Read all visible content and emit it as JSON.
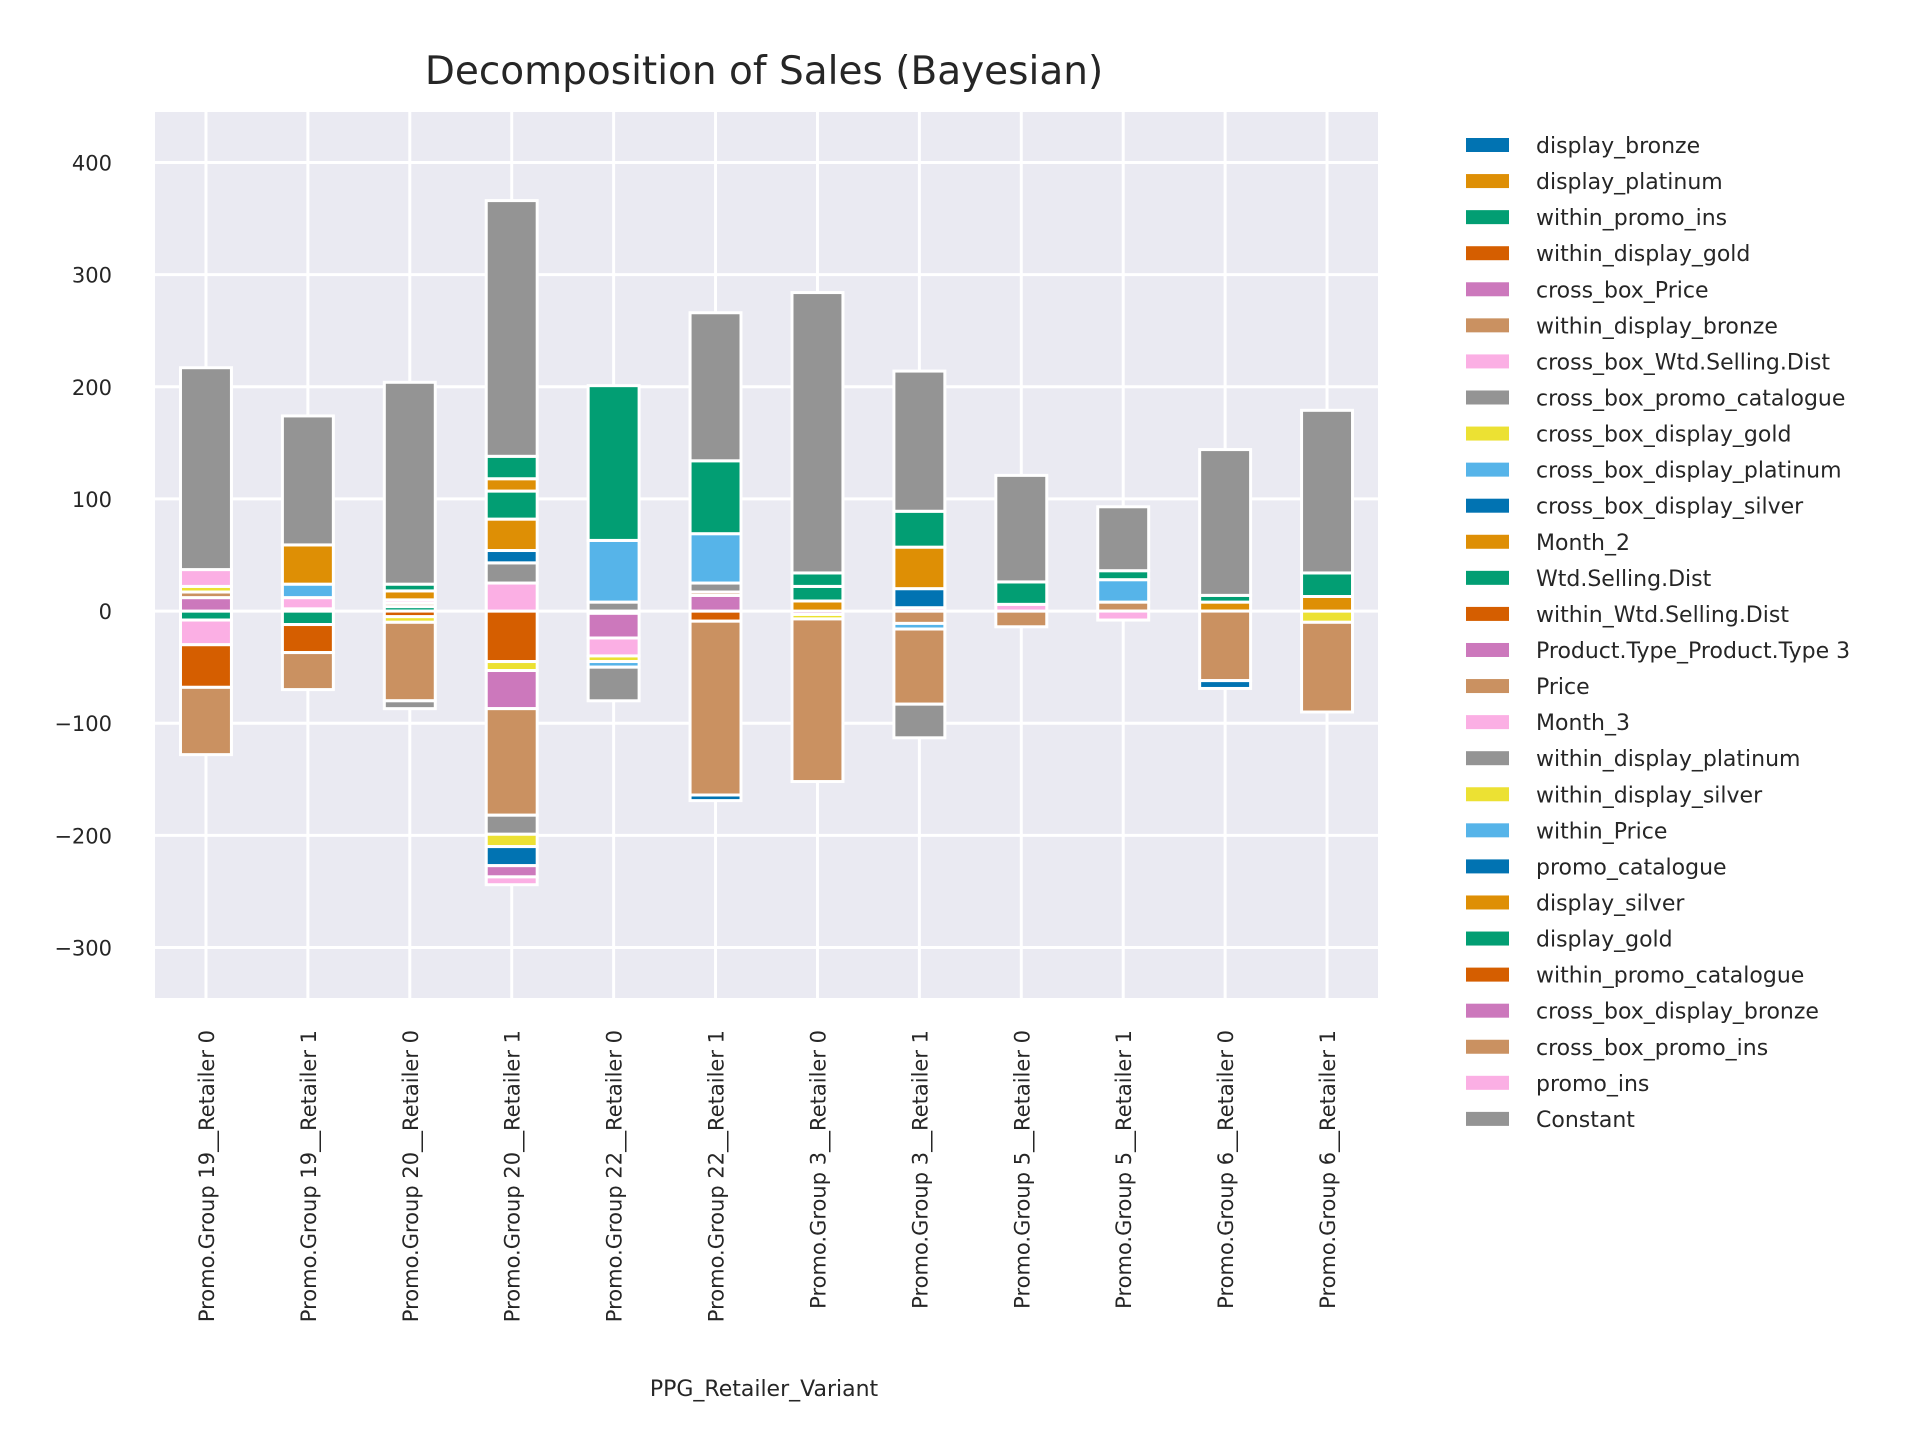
{
  "chart_data": {
    "type": "bar",
    "stacked": true,
    "title": "Decomposition of Sales (Bayesian)",
    "xlabel": "PPG_Retailer_Variant",
    "ylabel": "",
    "ylim": [
      -345,
      445
    ],
    "yticks": [
      -300,
      -200,
      -100,
      0,
      100,
      200,
      300,
      400
    ],
    "ytick_labels": [
      "−300",
      "−200",
      "−100",
      "0",
      "100",
      "200",
      "300",
      "400"
    ],
    "grid": true,
    "legend_position": "right",
    "categories": [
      "Promo.Group 19__Retailer 0",
      "Promo.Group 19__Retailer 1",
      "Promo.Group 20__Retailer 0",
      "Promo.Group 20__Retailer 1",
      "Promo.Group 22__Retailer 0",
      "Promo.Group 22__Retailer 1",
      "Promo.Group 3__Retailer 0",
      "Promo.Group 3__Retailer 1",
      "Promo.Group 5__Retailer 0",
      "Promo.Group 5__Retailer 1",
      "Promo.Group 6__Retailer 0",
      "Promo.Group 6__Retailer 1"
    ],
    "series": [
      {
        "name": "display_bronze",
        "color": "#0173b2",
        "values": [
          0,
          0,
          0,
          0,
          0,
          0,
          0,
          0,
          0,
          0,
          0,
          0
        ]
      },
      {
        "name": "display_platinum",
        "color": "#de8f05",
        "values": [
          0,
          0,
          0,
          0,
          0,
          0,
          0,
          0,
          0,
          0,
          0,
          0
        ]
      },
      {
        "name": "within_promo_ins",
        "color": "#029e73",
        "values": [
          -8,
          -12,
          4,
          0,
          0,
          0,
          0,
          0,
          0,
          0,
          0,
          0
        ]
      },
      {
        "name": "within_display_gold",
        "color": "#d55e00",
        "values": [
          0,
          -25,
          -5,
          -45,
          -2,
          -9,
          0,
          0,
          0,
          0,
          0,
          0
        ]
      },
      {
        "name": "cross_box_Price",
        "color": "#cc78bc",
        "values": [
          12,
          2,
          0,
          0,
          -22,
          14,
          -3,
          0,
          0,
          0,
          0,
          0
        ]
      },
      {
        "name": "within_display_bronze",
        "color": "#ca9161",
        "values": [
          5,
          0,
          3,
          0,
          0,
          3,
          0,
          -11,
          -14,
          8,
          0,
          0
        ]
      },
      {
        "name": "cross_box_Wtd.Selling.Dist",
        "color": "#fbafe4",
        "values": [
          -22,
          10,
          3,
          25,
          -16,
          0,
          0,
          3,
          6,
          -8,
          0,
          0
        ]
      },
      {
        "name": "cross_box_promo_catalogue",
        "color": "#949494",
        "values": [
          0,
          0,
          0,
          18,
          8,
          8,
          0,
          0,
          0,
          0,
          0,
          0
        ]
      },
      {
        "name": "cross_box_display_gold",
        "color": "#ece133",
        "values": [
          5,
          0,
          -5,
          -8,
          -5,
          0,
          -4,
          0,
          0,
          0,
          0,
          -10
        ]
      },
      {
        "name": "cross_box_display_platinum",
        "color": "#56b4e9",
        "values": [
          0,
          12,
          0,
          0,
          -5,
          44,
          0,
          -5,
          0,
          20,
          0,
          0
        ]
      },
      {
        "name": "cross_box_display_silver",
        "color": "#0173b2",
        "values": [
          0,
          0,
          0,
          11,
          0,
          0,
          0,
          17,
          0,
          0,
          0,
          0
        ]
      },
      {
        "name": "Month_2",
        "color": "#de8f05",
        "values": [
          0,
          35,
          8,
          28,
          0,
          0,
          9,
          37,
          0,
          0,
          8,
          13
        ]
      },
      {
        "name": "Wtd.Selling.Dist",
        "color": "#029e73",
        "values": [
          0,
          0,
          6,
          25,
          0,
          65,
          13,
          32,
          20,
          8,
          6,
          21
        ]
      },
      {
        "name": "within_Wtd.Selling.Dist",
        "color": "#d55e00",
        "values": [
          -38,
          0,
          0,
          0,
          0,
          0,
          0,
          0,
          0,
          0,
          0,
          0
        ]
      },
      {
        "name": "Product.Type_Product.Type 3",
        "color": "#cc78bc",
        "values": [
          0,
          0,
          0,
          -34,
          0,
          0,
          0,
          0,
          0,
          0,
          0,
          0
        ]
      },
      {
        "name": "Price",
        "color": "#ca9161",
        "values": [
          -60,
          -33,
          -70,
          -95,
          0,
          -155,
          -145,
          -67,
          0,
          0,
          -62,
          -80
        ]
      },
      {
        "name": "Month_3",
        "color": "#fbafe4",
        "values": [
          15,
          0,
          0,
          0,
          0,
          0,
          0,
          0,
          0,
          0,
          0,
          0
        ]
      },
      {
        "name": "within_display_platinum",
        "color": "#949494",
        "values": [
          0,
          0,
          -7,
          -17,
          0,
          0,
          0,
          -30,
          0,
          0,
          0,
          0
        ]
      },
      {
        "name": "within_display_silver",
        "color": "#ece133",
        "values": [
          0,
          0,
          0,
          -11,
          0,
          0,
          0,
          0,
          0,
          0,
          0,
          0
        ]
      },
      {
        "name": "within_Price",
        "color": "#56b4e9",
        "values": [
          0,
          0,
          0,
          0,
          55,
          0,
          0,
          0,
          0,
          0,
          0,
          0
        ]
      },
      {
        "name": "promo_catalogue",
        "color": "#0173b2",
        "values": [
          0,
          0,
          0,
          -17,
          0,
          -5,
          0,
          0,
          0,
          0,
          -7,
          0
        ]
      },
      {
        "name": "display_silver",
        "color": "#de8f05",
        "values": [
          0,
          0,
          0,
          11,
          0,
          0,
          0,
          0,
          0,
          0,
          0,
          0
        ]
      },
      {
        "name": "display_gold",
        "color": "#029e73",
        "values": [
          0,
          0,
          0,
          20,
          138,
          0,
          12,
          0,
          0,
          0,
          0,
          0
        ]
      },
      {
        "name": "within_promo_catalogue",
        "color": "#d55e00",
        "values": [
          0,
          0,
          0,
          0,
          0,
          0,
          0,
          0,
          0,
          0,
          0,
          0
        ]
      },
      {
        "name": "cross_box_display_bronze",
        "color": "#cc78bc",
        "values": [
          0,
          0,
          0,
          -10,
          0,
          0,
          0,
          0,
          0,
          0,
          0,
          0
        ]
      },
      {
        "name": "cross_box_promo_ins",
        "color": "#ca9161",
        "values": [
          0,
          0,
          0,
          0,
          0,
          0,
          0,
          0,
          0,
          0,
          0,
          0
        ]
      },
      {
        "name": "promo_ins",
        "color": "#fbafe4",
        "values": [
          0,
          0,
          0,
          -7,
          0,
          0,
          0,
          0,
          0,
          0,
          0,
          0
        ]
      },
      {
        "name": "Constant",
        "color": "#949494",
        "values": [
          180,
          115,
          180,
          228,
          -30,
          132,
          250,
          125,
          95,
          57,
          130,
          145
        ]
      }
    ]
  }
}
